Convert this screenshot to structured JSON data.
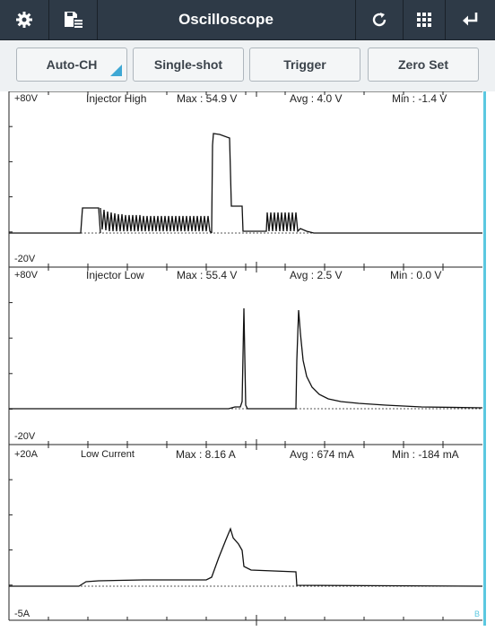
{
  "app": {
    "title": "Oscilloscope"
  },
  "topbar": {
    "icons": [
      "gear-icon",
      "save-list-icon",
      "refresh-icon",
      "grid-icon",
      "back-icon"
    ]
  },
  "toolbar": {
    "auto_ch": "Auto-CH",
    "single_shot": "Single-shot",
    "trigger": "Trigger",
    "zero_set": "Zero Set"
  },
  "channels": [
    {
      "top": "+80V",
      "bottom": "-20V",
      "name": "Injector High",
      "max": "Max : 54.9 V",
      "avg": "Avg : 4.0 V",
      "min": "Min : -1.4 V"
    },
    {
      "top": "+80V",
      "bottom": "-20V",
      "name": "Injector Low",
      "max": "Max : 55.4 V",
      "avg": "Avg : 2.5 V",
      "min": "Min : 0.0 V"
    },
    {
      "top": "+20A",
      "bottom": "-5A",
      "name": "Low Current",
      "max": "Max  : 8.16 A",
      "avg": "Avg : 674 mA",
      "min": "Min : -184 mA"
    }
  ],
  "corner_marker": "B",
  "colors": {
    "topbar": "#2e3a47",
    "accent": "#3fa8d4",
    "trace": "#111111"
  }
}
